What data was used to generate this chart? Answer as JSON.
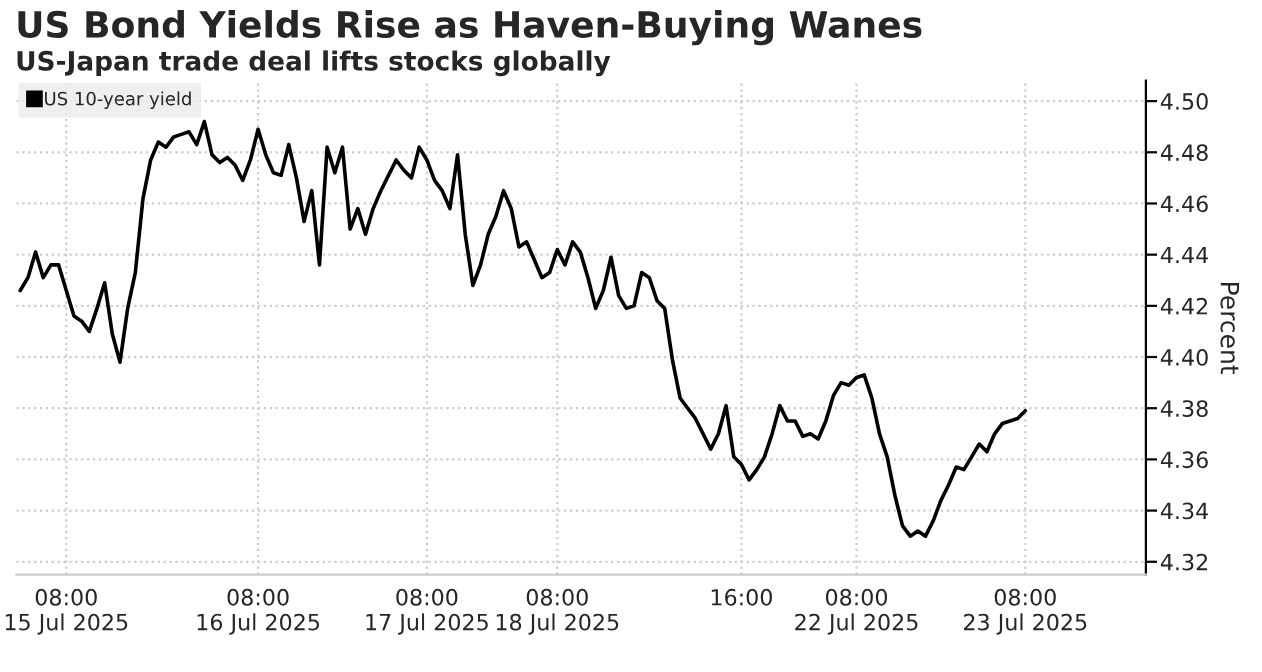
{
  "chart_data": {
    "type": "line",
    "title": "US Bond Yields Rise as Haven-Buying Wanes",
    "subtitle": "US-Japan trade deal lifts stocks globally",
    "ylabel": "Percent",
    "series": [
      {
        "name": "US 10-year yield",
        "color": "#000000",
        "values": [
          4.426,
          4.431,
          4.441,
          4.431,
          4.436,
          4.436,
          4.426,
          4.416,
          4.414,
          4.41,
          4.419,
          4.429,
          4.409,
          4.398,
          4.419,
          4.433,
          4.462,
          4.477,
          4.484,
          4.482,
          4.486,
          4.487,
          4.488,
          4.483,
          4.492,
          4.479,
          4.476,
          4.478,
          4.475,
          4.469,
          4.477,
          4.489,
          4.479,
          4.472,
          4.471,
          4.483,
          4.47,
          4.453,
          4.465,
          4.436,
          4.482,
          4.472,
          4.482,
          4.45,
          4.458,
          4.448,
          4.458,
          4.465,
          4.471,
          4.477,
          4.473,
          4.47,
          4.482,
          4.477,
          4.469,
          4.465,
          4.458,
          4.479,
          4.448,
          4.428,
          4.436,
          4.448,
          4.455,
          4.465,
          4.458,
          4.443,
          4.445,
          4.438,
          4.431,
          4.433,
          4.442,
          4.436,
          4.445,
          4.441,
          4.431,
          4.419,
          4.426,
          4.439,
          4.424,
          4.419,
          4.42,
          4.433,
          4.431,
          4.422,
          4.419,
          4.399,
          4.384,
          4.38,
          4.376,
          4.37,
          4.364,
          4.37,
          4.381,
          4.361,
          4.358,
          4.352,
          4.356,
          4.361,
          4.37,
          4.381,
          4.375,
          4.375,
          4.369,
          4.37,
          4.368,
          4.375,
          4.385,
          4.39,
          4.389,
          4.392,
          4.393,
          4.384,
          4.37,
          4.361,
          4.346,
          4.334,
          4.33,
          4.332,
          4.33,
          4.336,
          4.344,
          4.35,
          4.357,
          4.356,
          4.361,
          4.366,
          4.363,
          4.37,
          4.374,
          4.375,
          4.376,
          4.379
        ]
      }
    ],
    "categories": [
      null,
      null,
      null,
      null,
      null,
      null,
      "08:00\n15 Jul 2025",
      null,
      null,
      null,
      null,
      null,
      null,
      null,
      null,
      null,
      null,
      null,
      null,
      null,
      null,
      null,
      null,
      null,
      null,
      null,
      null,
      null,
      null,
      null,
      null,
      "08:00\n16 Jul 2025",
      null,
      null,
      null,
      null,
      null,
      null,
      null,
      null,
      null,
      null,
      null,
      null,
      null,
      null,
      null,
      null,
      null,
      null,
      null,
      null,
      null,
      "08:00\n17 Jul 2025",
      null,
      null,
      null,
      null,
      null,
      null,
      null,
      null,
      null,
      null,
      null,
      null,
      null,
      null,
      null,
      null,
      "08:00\n18 Jul 2025",
      null,
      null,
      null,
      null,
      null,
      null,
      null,
      null,
      null,
      null,
      null,
      null,
      null,
      null,
      null,
      null,
      null,
      null,
      null,
      null,
      null,
      null,
      null,
      "16:00",
      null,
      null,
      null,
      null,
      null,
      null,
      null,
      null,
      null,
      null,
      null,
      null,
      null,
      null,
      "08:00\n22 Jul 2025",
      null,
      null,
      null,
      null,
      null,
      null,
      null,
      null,
      null,
      null,
      null,
      null,
      null,
      null,
      null,
      null,
      null,
      null,
      null,
      null,
      null,
      "08:00\n23 Jul 2025"
    ],
    "ylim": [
      4.315,
      4.508
    ],
    "yticks": [
      {
        "value": 4.32,
        "label": "4.32"
      },
      {
        "value": 4.34,
        "label": "4.34"
      },
      {
        "value": 4.36,
        "label": "4.36"
      },
      {
        "value": 4.38,
        "label": "4.38"
      },
      {
        "value": 4.4,
        "label": "4.40"
      },
      {
        "value": 4.42,
        "label": "4.42"
      },
      {
        "value": 4.44,
        "label": "4.44"
      },
      {
        "value": 4.46,
        "label": "4.46"
      },
      {
        "value": 4.48,
        "label": "4.48"
      },
      {
        "value": 4.5,
        "label": "4.50"
      }
    ],
    "grid": "y",
    "legend": "top left",
    "line_style": "solid",
    "marker": "none"
  }
}
